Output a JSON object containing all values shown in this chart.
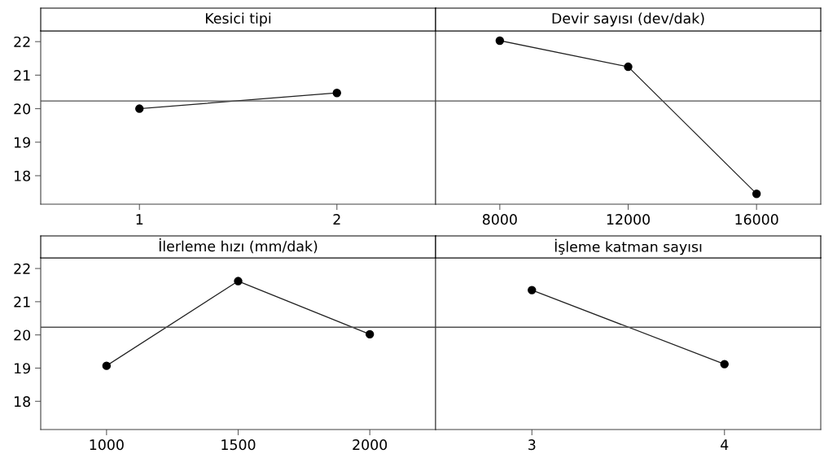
{
  "chart_data": [
    {
      "type": "line",
      "title": "Kesici tipi",
      "categories": [
        "1",
        "2"
      ],
      "series": [
        {
          "color": "#000000",
          "values": [
            20.0,
            20.47
          ]
        }
      ],
      "ylim": [
        17.15,
        22.32
      ],
      "yticks": [
        18,
        19,
        20,
        21,
        22
      ],
      "marker": "circle",
      "line_style": "solid",
      "grid": false,
      "legend": false,
      "ref_lines": [
        {
          "axis": "y",
          "value": 20.23,
          "color": "#505050"
        }
      ]
    },
    {
      "type": "line",
      "title": "Devir sayısı (dev/dak)",
      "categories": [
        "8000",
        "12000",
        "16000"
      ],
      "series": [
        {
          "color": "#000000",
          "values": [
            22.03,
            21.25,
            17.46
          ]
        }
      ],
      "ylim": [
        17.15,
        22.32
      ],
      "yticks": [
        18,
        19,
        20,
        21,
        22
      ],
      "tick_labels": "x",
      "marker": "circle",
      "line_style": "solid",
      "grid": false,
      "legend": false,
      "ref_lines": [
        {
          "axis": "y",
          "value": 20.23,
          "color": "#505050"
        }
      ]
    },
    {
      "type": "line",
      "title": "İlerleme hızı (mm/dak)",
      "categories": [
        "1000",
        "1500",
        "2000"
      ],
      "series": [
        {
          "color": "#000000",
          "values": [
            19.07,
            21.62,
            20.02
          ]
        }
      ],
      "ylim": [
        17.15,
        22.32
      ],
      "yticks": [
        18,
        19,
        20,
        21,
        22
      ],
      "marker": "circle",
      "line_style": "solid",
      "grid": false,
      "legend": false,
      "ref_lines": [
        {
          "axis": "y",
          "value": 20.23,
          "color": "#505050"
        }
      ]
    },
    {
      "type": "line",
      "title": "İşleme katman sayısı",
      "categories": [
        "3",
        "4"
      ],
      "series": [
        {
          "color": "#000000",
          "values": [
            21.35,
            19.12
          ]
        }
      ],
      "ylim": [
        17.15,
        22.32
      ],
      "yticks": [
        18,
        19,
        20,
        21,
        22
      ],
      "tick_labels": "x",
      "marker": "circle",
      "line_style": "solid",
      "grid": false,
      "legend": false,
      "ref_lines": [
        {
          "axis": "y",
          "value": 20.23,
          "color": "#505050"
        }
      ]
    }
  ]
}
